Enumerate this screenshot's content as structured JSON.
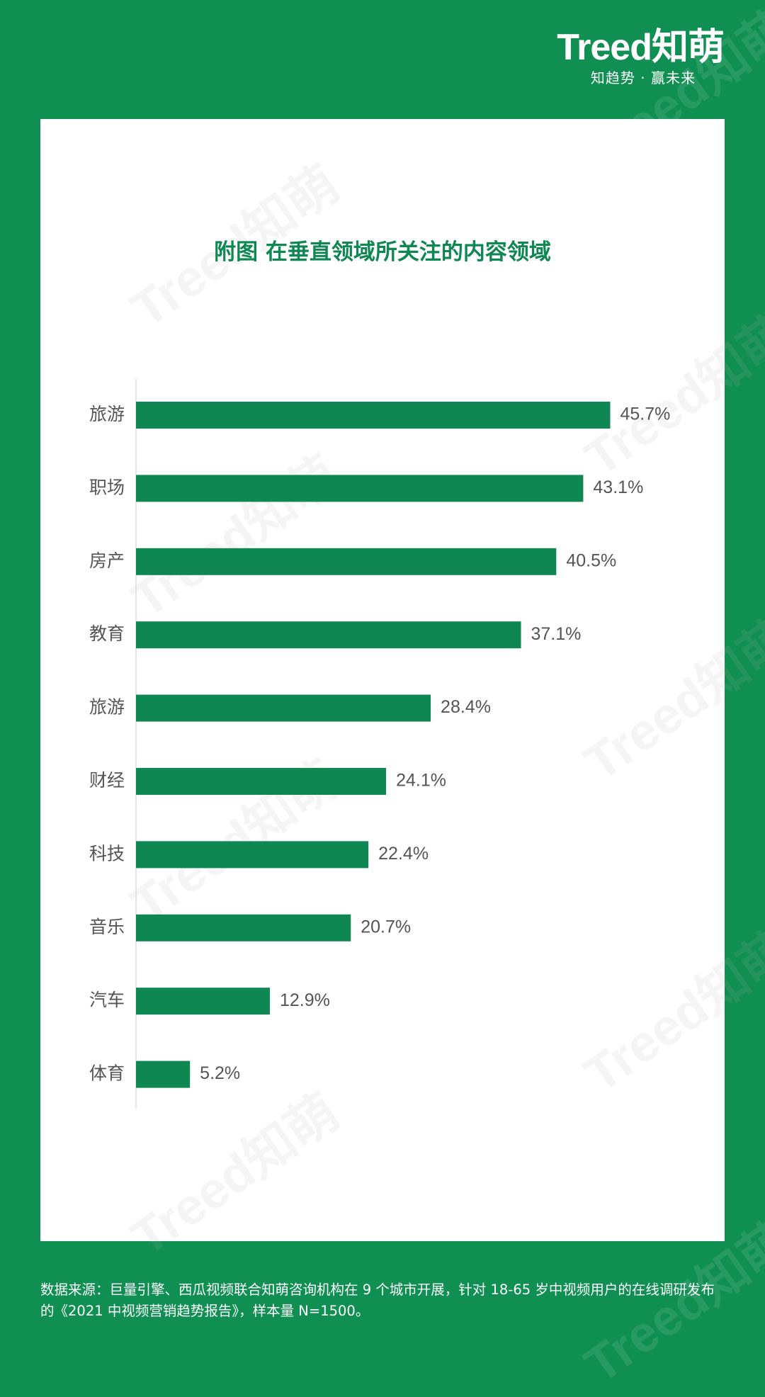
{
  "brand": {
    "logo": "Treed知萌",
    "slogan": "知趋势 · 赢未来"
  },
  "watermark": "Treed知萌",
  "colors": {
    "background": "#0f8f52",
    "bar": "#0f8752",
    "title": "#0f8752",
    "axis": "#dddddd",
    "label": "#555555"
  },
  "chart_data": {
    "type": "bar",
    "orientation": "horizontal",
    "title": "附图 在垂直领域所关注的内容领域",
    "categories": [
      "旅游",
      "职场",
      "房产",
      "教育",
      "旅游",
      "财经",
      "科技",
      "音乐",
      "汽车",
      "体育"
    ],
    "values": [
      45.7,
      43.1,
      40.5,
      37.1,
      28.4,
      24.1,
      22.4,
      20.7,
      12.9,
      5.2
    ],
    "value_labels": [
      "45.7%",
      "43.1%",
      "40.5%",
      "37.1%",
      "28.4%",
      "24.1%",
      "22.4%",
      "20.7%",
      "12.9%",
      "5.2%"
    ],
    "unit": "%",
    "grid": false,
    "legend": "none"
  },
  "footer": {
    "source": "数据来源：巨量引擎、西瓜视频联合知萌咨询机构在 9 个城市开展，针对 18-65 岁中视频用户的在线调研发布的《2021 中视频营销趋势报告》，样本量 N=1500。"
  }
}
